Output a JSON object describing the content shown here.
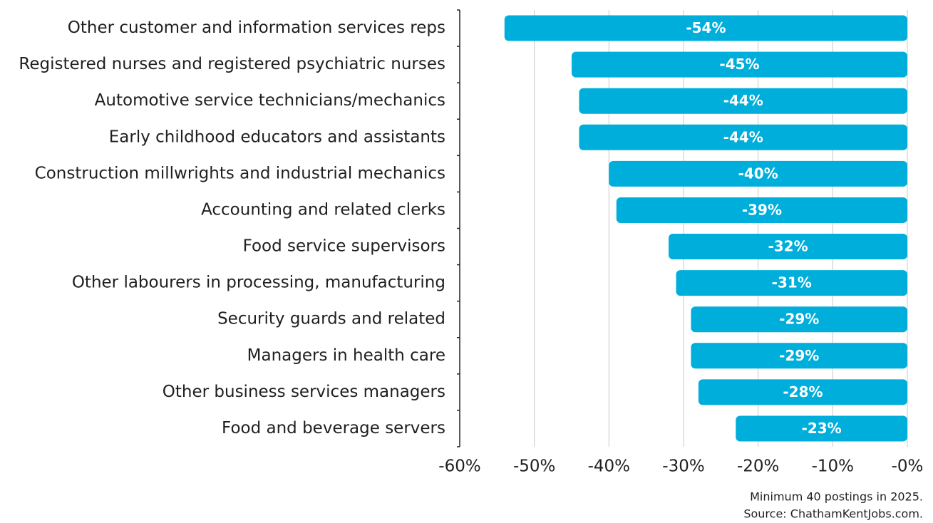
{
  "chart_data": {
    "type": "bar",
    "orientation": "horizontal",
    "categories": [
      "Other customer and information services reps",
      "Registered nurses and registered psychiatric nurses",
      "Automotive service technicians/mechanics",
      "Early childhood educators and assistants",
      "Construction millwrights and industrial mechanics",
      "Accounting and related clerks",
      "Food service supervisors",
      "Other labourers in processing, manufacturing",
      "Security guards and related",
      "Managers in health care",
      "Other business services managers",
      "Food and beverage servers"
    ],
    "values": [
      -54,
      -45,
      -44,
      -44,
      -40,
      -39,
      -32,
      -31,
      -29,
      -29,
      -28,
      -23
    ],
    "value_labels": [
      "-54%",
      "-45%",
      "-44%",
      "-44%",
      "-40%",
      "-39%",
      "-32%",
      "-31%",
      "-29%",
      "-29%",
      "-28%",
      "-23%"
    ],
    "color": "#00aedb",
    "xlim": [
      -60,
      0
    ],
    "xticks": [
      {
        "value": -60,
        "label": "-60%"
      },
      {
        "value": -50,
        "label": "-50%"
      },
      {
        "value": -40,
        "label": "-40%"
      },
      {
        "value": -30,
        "label": "-30%"
      },
      {
        "value": -20,
        "label": "-20%"
      },
      {
        "value": -10,
        "label": "-10%"
      },
      {
        "value": 0,
        "label": "-0%"
      }
    ],
    "grid": true,
    "notes": [
      "Minimum 40 postings in 2025.",
      "Source: ChathamKentJobs.com."
    ]
  }
}
